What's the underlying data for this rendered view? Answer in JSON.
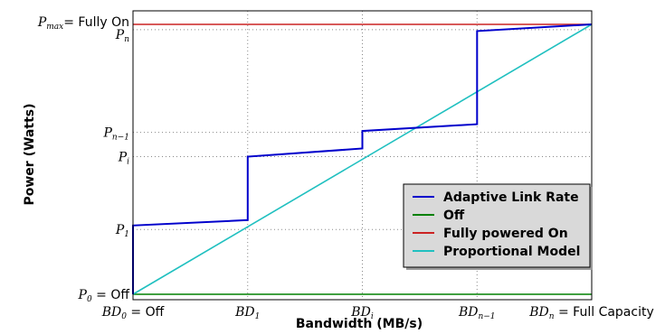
{
  "chart_data": {
    "type": "line",
    "title": "",
    "xlabel": "Bandwidth (MB/s)",
    "ylabel": "Power (Watts)",
    "grid": true,
    "legend_position": "lower-right",
    "x_ticks": [
      {
        "main": "BD",
        "sub": "0",
        "suffix": " = Off"
      },
      {
        "main": "BD",
        "sub": "1",
        "suffix": ""
      },
      {
        "main": "BD",
        "sub": "i",
        "suffix": ""
      },
      {
        "main": "BD",
        "sub": "n−1",
        "suffix": ""
      },
      {
        "main": "BD",
        "sub": "n",
        "suffix": " = Full Capacity"
      }
    ],
    "y_ticks": [
      {
        "key": "P0",
        "main": "P",
        "sub": "0",
        "suffix": " = Off",
        "value": 0
      },
      {
        "key": "P1",
        "main": "P",
        "sub": "1",
        "suffix": "",
        "value": 0.24
      },
      {
        "key": "Pi",
        "main": "P",
        "sub": "i",
        "suffix": "",
        "value": 0.51
      },
      {
        "key": "Pn1",
        "main": "P",
        "sub": "n−1",
        "suffix": "",
        "value": 0.6
      },
      {
        "key": "Pn",
        "main": "P",
        "sub": "n",
        "suffix": "",
        "value": 0.98
      },
      {
        "key": "Pmax",
        "main": "P",
        "sub": "max",
        "suffix": "= Fully On",
        "value": 1
      }
    ],
    "xlim": [
      0,
      4
    ],
    "ylim": [
      -0.02,
      1.05
    ],
    "series": [
      {
        "name": "Adaptive Link Rate",
        "color": "#0000cc",
        "x": [
          0,
          0,
          1,
          1,
          2,
          2,
          3,
          3,
          4
        ],
        "y": [
          0,
          0.255,
          0.275,
          0.51,
          0.54,
          0.605,
          0.63,
          0.975,
          1.0
        ]
      },
      {
        "name": "Off",
        "color": "#008000",
        "x": [
          0,
          4
        ],
        "y": [
          0,
          0
        ]
      },
      {
        "name": "Fully powered On",
        "color": "#cc2222",
        "x": [
          0,
          4
        ],
        "y": [
          1.0,
          1.0
        ]
      },
      {
        "name": "Proportional Model",
        "color": "#20c0c0",
        "x": [
          0,
          4
        ],
        "y": [
          0,
          1.0
        ]
      }
    ]
  }
}
